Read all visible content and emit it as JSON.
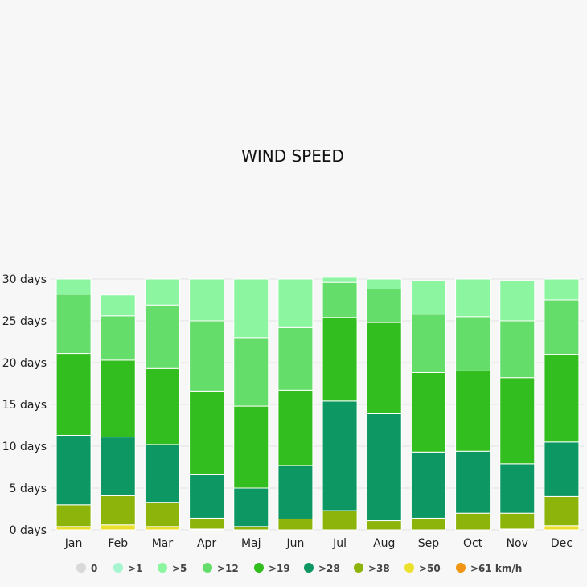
{
  "chart_data": {
    "type": "bar",
    "stacked": true,
    "title": "WIND SPEED",
    "categories": [
      "Jan",
      "Feb",
      "Mar",
      "Apr",
      "Maj",
      "Jun",
      "Jul",
      "Aug",
      "Sep",
      "Oct",
      "Nov",
      "Dec"
    ],
    "y_ticks": [
      "0 days",
      "5 days",
      "10 days",
      "15 days",
      "20 days",
      "25 days",
      "30 days"
    ],
    "ylim": [
      0,
      30
    ],
    "grid": true,
    "legend_position": "bottom",
    "series": [
      {
        "name": "0",
        "color": "#d9d9d9",
        "values": [
          0,
          0,
          0,
          0,
          0,
          0,
          0,
          0,
          0,
          0,
          0,
          0
        ]
      },
      {
        "name": ">1",
        "color": "#a6f5d0",
        "values": [
          0,
          0,
          0,
          0,
          0,
          0,
          0,
          0,
          0,
          0,
          0,
          0
        ]
      },
      {
        "name": ">5",
        "color": "#8cf5a0",
        "values": [
          1.8,
          2.5,
          3.1,
          5.0,
          7.0,
          5.8,
          0.6,
          1.2,
          4.0,
          4.5,
          4.8,
          2.5
        ]
      },
      {
        "name": ">12",
        "color": "#64dd6a",
        "values": [
          7.1,
          5.3,
          7.6,
          8.4,
          8.2,
          7.5,
          4.2,
          4.0,
          7.0,
          6.5,
          6.8,
          6.5
        ]
      },
      {
        "name": ">19",
        "color": "#32be1e",
        "values": [
          9.8,
          9.2,
          9.1,
          10.0,
          9.8,
          9.0,
          10.0,
          10.9,
          9.5,
          9.6,
          10.3,
          10.5
        ]
      },
      {
        "name": ">28",
        "color": "#0d9762",
        "values": [
          8.3,
          7.0,
          6.9,
          5.2,
          4.6,
          6.4,
          13.1,
          12.8,
          7.9,
          7.4,
          5.9,
          6.5
        ]
      },
      {
        "name": ">38",
        "color": "#8cb40a",
        "values": [
          2.6,
          3.5,
          2.9,
          1.3,
          0.4,
          1.3,
          2.3,
          1.1,
          1.4,
          2.0,
          1.9,
          3.5
        ]
      },
      {
        "name": ">50",
        "color": "#ebe12d",
        "values": [
          0.4,
          0.6,
          0.4,
          0.1,
          0,
          0,
          0,
          0,
          0,
          0,
          0.1,
          0.5
        ]
      },
      {
        "name": ">61 km/h",
        "color": "#f09614",
        "values": [
          0,
          0,
          0,
          0,
          0,
          0,
          0,
          0,
          0,
          0,
          0,
          0
        ]
      }
    ]
  }
}
